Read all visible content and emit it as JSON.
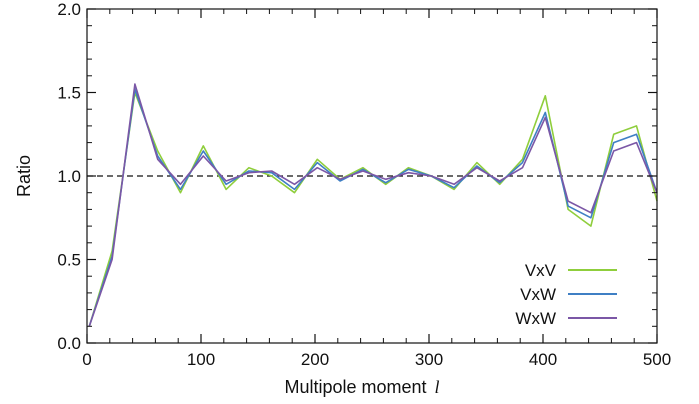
{
  "chart_data": {
    "type": "line",
    "title": "",
    "xlabel": "Multipole moment",
    "xlabel_symbol": "l",
    "ylabel": "Ratio",
    "xlim": [
      0,
      500
    ],
    "ylim": [
      0.0,
      2.0
    ],
    "xticks": [
      0,
      100,
      200,
      300,
      400,
      500
    ],
    "xtick_labels": [
      "0",
      "100",
      "200",
      "300",
      "400",
      "500"
    ],
    "yticks": [
      0.0,
      0.5,
      1.0,
      1.5,
      2.0
    ],
    "ytick_labels": [
      "0.0",
      "0.5",
      "1.0",
      "1.5",
      "2.0"
    ],
    "reference_line": {
      "y": 1.0,
      "style": "dashed"
    },
    "legend_position": "bottom-right",
    "x": [
      2,
      22,
      42,
      62,
      82,
      102,
      122,
      142,
      162,
      182,
      202,
      222,
      242,
      262,
      282,
      302,
      322,
      342,
      362,
      382,
      402,
      422,
      442,
      462,
      482,
      500
    ],
    "series": [
      {
        "name": "VxV",
        "color": "#8fce3c",
        "values": [
          0.1,
          0.55,
          1.5,
          1.15,
          0.9,
          1.18,
          0.92,
          1.05,
          1.0,
          0.9,
          1.1,
          0.98,
          1.05,
          0.95,
          1.05,
          1.0,
          0.92,
          1.08,
          0.95,
          1.1,
          1.48,
          0.8,
          0.7,
          1.25,
          1.3,
          0.85
        ]
      },
      {
        "name": "VxW",
        "color": "#3f7fc4",
        "values": [
          0.1,
          0.52,
          1.52,
          1.12,
          0.92,
          1.15,
          0.95,
          1.03,
          1.02,
          0.92,
          1.08,
          0.97,
          1.04,
          0.96,
          1.04,
          1.0,
          0.93,
          1.06,
          0.96,
          1.08,
          1.38,
          0.82,
          0.75,
          1.2,
          1.25,
          0.9
        ]
      },
      {
        "name": "WxW",
        "color": "#7b57a6",
        "values": [
          0.1,
          0.5,
          1.55,
          1.1,
          0.95,
          1.12,
          0.97,
          1.02,
          1.03,
          0.95,
          1.05,
          0.98,
          1.03,
          0.98,
          1.02,
          1.0,
          0.95,
          1.05,
          0.97,
          1.05,
          1.35,
          0.85,
          0.78,
          1.15,
          1.2,
          0.9
        ]
      }
    ]
  }
}
